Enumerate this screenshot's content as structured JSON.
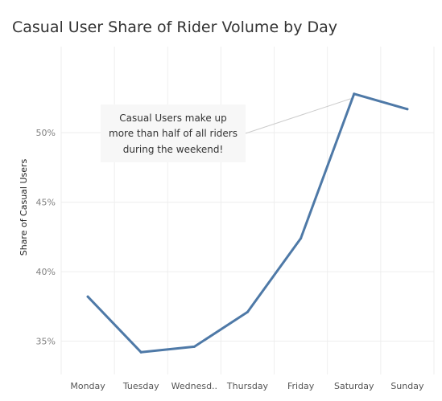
{
  "chart_data": {
    "type": "line",
    "title": "Casual User Share of Rider Volume by Day",
    "xlabel": "",
    "ylabel": "Share of Casual Users",
    "categories": [
      "Monday",
      "Tuesday",
      "Wednesd..",
      "Thursday",
      "Friday",
      "Saturday",
      "Sunday"
    ],
    "series": [
      {
        "values": [
          38.2,
          34.2,
          34.6,
          37.1,
          42.4,
          52.8,
          51.7
        ]
      }
    ],
    "ylim": [
      32.6,
      56.2
    ],
    "yticks": [
      35,
      40,
      45,
      50
    ],
    "ytick_labels": [
      "35%",
      "40%",
      "45%",
      "50%"
    ],
    "grid": true,
    "line_color": "#4e79a7",
    "annotation": {
      "lines": [
        "Casual Users make up",
        "more than half of all riders",
        "during the weekend!"
      ],
      "points_to_category": "Saturday"
    }
  }
}
